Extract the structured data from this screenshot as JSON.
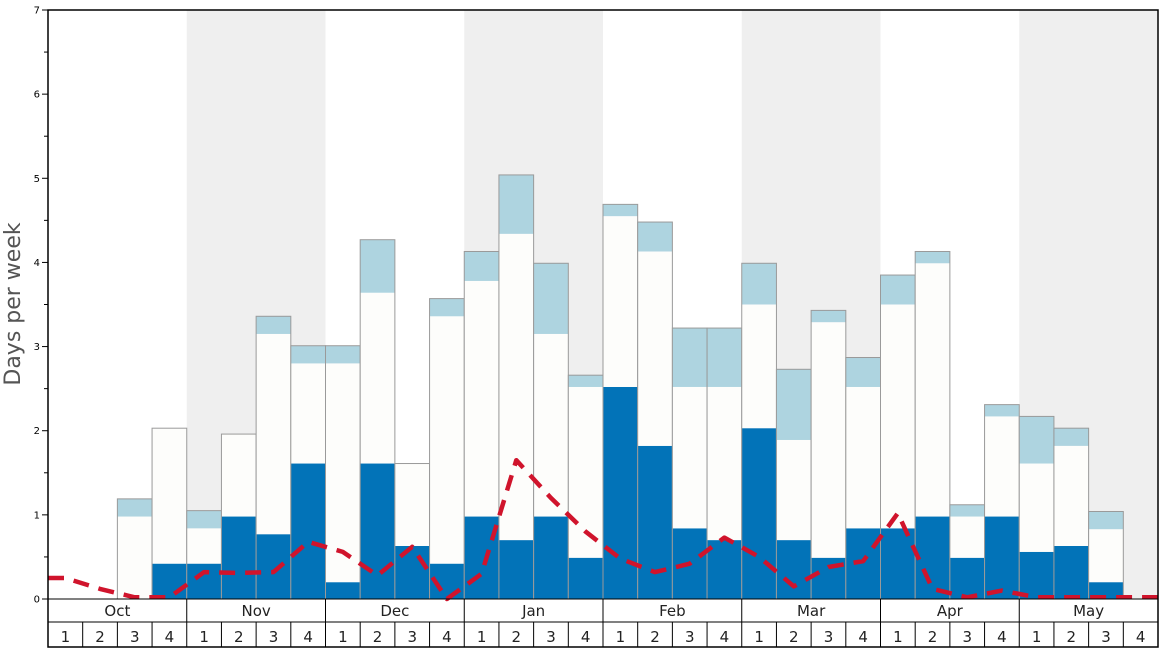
{
  "chart_data": {
    "type": "bar",
    "stacked": true,
    "ylabel": "Days per week",
    "ylim": [
      0,
      7
    ],
    "yticks": [
      0,
      1,
      2,
      3,
      4,
      5,
      6,
      7
    ],
    "grid": false,
    "months": [
      "Oct",
      "Nov",
      "Dec",
      "Jan",
      "Feb",
      "Mar",
      "Apr",
      "May"
    ],
    "week_labels": [
      "1",
      "2",
      "3",
      "4",
      "1",
      "2",
      "3",
      "4",
      "1",
      "2",
      "3",
      "4",
      "1",
      "2",
      "3",
      "4",
      "1",
      "2",
      "3",
      "4",
      "1",
      "2",
      "3",
      "4",
      "1",
      "2",
      "3",
      "4",
      "1",
      "2",
      "3",
      "4"
    ],
    "colors": {
      "dark": "#0273b8",
      "white": "#fdfdfb",
      "light": "#aed4e0",
      "line": "#d0142c",
      "shade": "#efefef",
      "bar_edge": "#9a9a9a"
    },
    "series": [
      {
        "values": [
          0,
          0,
          0,
          0.42,
          0.42,
          0.98,
          0.77,
          1.61,
          0.2,
          1.61,
          0.63,
          0.42,
          0.98,
          0.7,
          0.98,
          0.49,
          2.52,
          1.82,
          0.84,
          0.7,
          2.03,
          0.7,
          0.49,
          0.84,
          0.84,
          0.98,
          0.49,
          0.98,
          0.56,
          0.63,
          0.2,
          0
        ]
      },
      {
        "values": [
          0,
          0,
          0.98,
          1.61,
          0.42,
          0.98,
          2.38,
          1.19,
          2.6,
          2.03,
          0.98,
          2.94,
          2.8,
          3.64,
          2.17,
          2.03,
          2.03,
          2.31,
          1.68,
          1.82,
          1.47,
          1.19,
          2.8,
          1.68,
          2.66,
          3.01,
          0.49,
          1.19,
          1.05,
          1.19,
          0.63,
          0
        ]
      },
      {
        "values": [
          0,
          0,
          0.21,
          0,
          0.21,
          0,
          0.21,
          0.21,
          0.21,
          0.63,
          0,
          0.21,
          0.35,
          0.7,
          0.84,
          0.14,
          0.14,
          0.35,
          0.7,
          0.7,
          0.49,
          0.84,
          0.14,
          0.35,
          0.35,
          0.14,
          0.14,
          0.14,
          0.56,
          0.21,
          0.21,
          0
        ]
      }
    ],
    "line": {
      "values": [
        0.25,
        0.12,
        0.02,
        0.02,
        0.32,
        0.31,
        0.32,
        0.68,
        0.56,
        0.28,
        0.62,
        0.0,
        0.3,
        1.65,
        1.2,
        0.8,
        0.48,
        0.32,
        0.42,
        0.73,
        0.5,
        0.15,
        0.38,
        0.45,
        1.02,
        0.12,
        0.02,
        0.1,
        0.02,
        0.02,
        0.02,
        0.02
      ]
    }
  }
}
